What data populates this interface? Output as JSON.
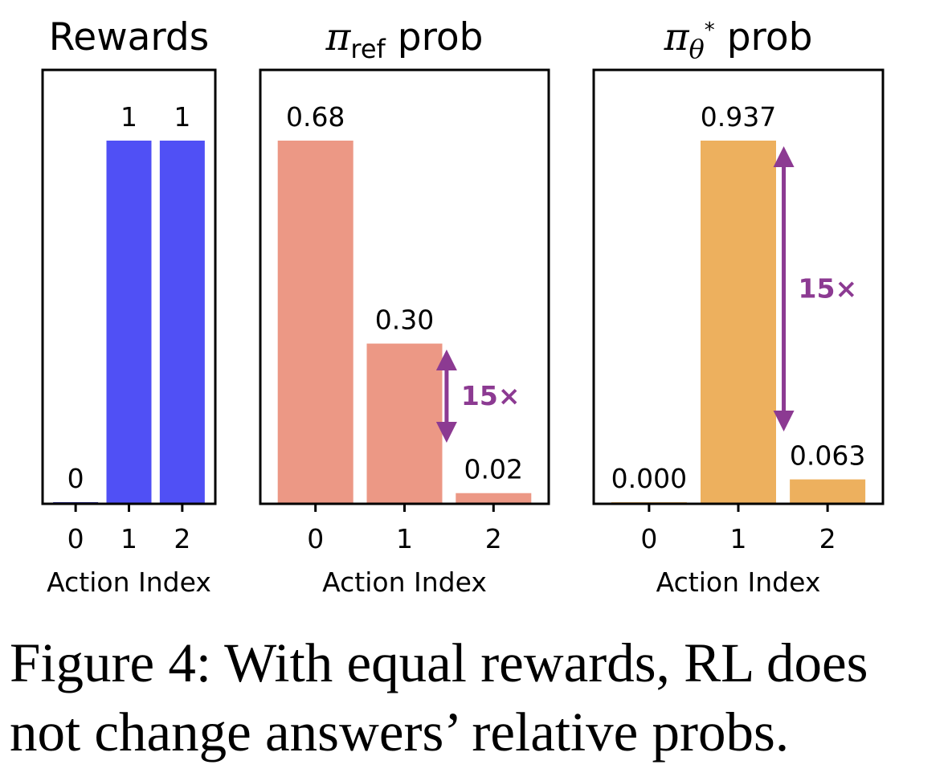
{
  "chart_data": [
    {
      "type": "bar",
      "title": "Rewards",
      "xlabel": "Action Index",
      "ylabel": "",
      "categories": [
        "0",
        "1",
        "2"
      ],
      "values": [
        0,
        1,
        1
      ],
      "value_labels": [
        "0",
        "1",
        "1"
      ],
      "ylim": [
        0,
        1.0
      ],
      "yticks_visible": false,
      "grid": false,
      "color": "#5050f5",
      "annotation": null
    },
    {
      "type": "bar",
      "title": "π",
      "title_subscript": "ref",
      "title_suffix": " prob",
      "xlabel": "Action Index",
      "ylabel": "",
      "categories": [
        "0",
        "1",
        "2"
      ],
      "values": [
        0.68,
        0.3,
        0.02
      ],
      "value_labels": [
        "0.68",
        "0.30",
        "0.02"
      ],
      "ylim": [
        0,
        0.68
      ],
      "yticks_visible": false,
      "grid": false,
      "color": "#ec9885",
      "annotation": {
        "text": "15×",
        "from_category": "1",
        "to_category": "2",
        "color": "#8c3a92"
      }
    },
    {
      "type": "bar",
      "title": "π",
      "title_subscript": "θ",
      "title_superscript": "*",
      "title_suffix": " prob",
      "xlabel": "Action Index",
      "ylabel": "",
      "categories": [
        "0",
        "1",
        "2"
      ],
      "values": [
        0.0,
        0.937,
        0.063
      ],
      "value_labels": [
        "0.000",
        "0.937",
        "0.063"
      ],
      "ylim": [
        0,
        0.937
      ],
      "yticks_visible": false,
      "grid": false,
      "color": "#edb05e",
      "annotation": {
        "text": "15×",
        "from_category": "1",
        "to_category": "2",
        "color": "#8c3a92"
      }
    }
  ],
  "caption": {
    "line1": "Figure 4: With equal rewards, RL does",
    "line2": "not change answers’ relative probs."
  }
}
